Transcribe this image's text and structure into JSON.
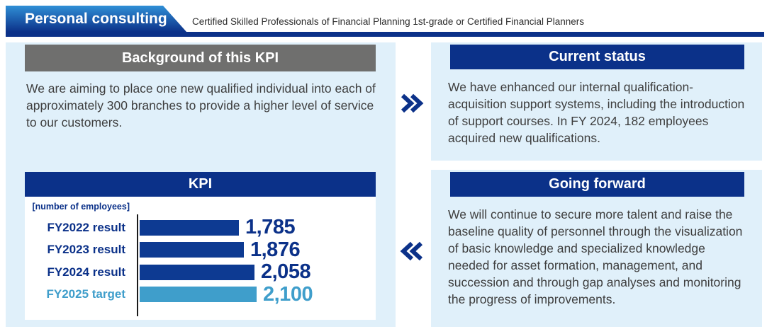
{
  "header": {
    "title": "Personal consulting",
    "subtitle": "Certified Skilled Professionals of Financial Planning 1st-grade or Certified Financial Planners"
  },
  "background": {
    "heading": "Background of this KPI",
    "body": "We are aiming to place one new qualified individual into each of approximately 300 branches to provide a higher level of service to our customers."
  },
  "current_status": {
    "heading": "Current status",
    "body": "We have enhanced our internal qualification-acquisition support systems, including the introduction of support courses. In FY 2024, 182 employees acquired new qualifications."
  },
  "going_forward": {
    "heading": "Going forward",
    "body": "We will continue to secure more talent and raise the baseline quality of personnel through the visualization of basic knowledge and specialized knowledge needed for asset formation, management, and succession and through gap analyses and monitoring the progress of improvements."
  },
  "kpi": {
    "heading": "KPI",
    "unit_label": "[number of employees]"
  },
  "icons": {
    "forward_arrow": "double-chevron-right",
    "back_arrow": "double-chevron-left"
  },
  "colors": {
    "navy": "#0b3189",
    "bar_navy": "#0d3a92",
    "target_blue": "#3f9ecb",
    "panel_bg": "#e0f0fa",
    "gray_header": "#6f6f6e",
    "banner_gradient_top": "#2f8fd6",
    "banner_gradient_bottom": "#0c3189"
  },
  "chart_data": {
    "type": "bar",
    "orientation": "horizontal",
    "title": "KPI",
    "unit": "[number of employees]",
    "categories": [
      "FY2022 result",
      "FY2023 result",
      "FY2024 result",
      "FY2025 target"
    ],
    "values": [
      1785,
      1876,
      2058,
      2100
    ],
    "value_labels": [
      "1,785",
      "1,876",
      "2,058",
      "2,100"
    ],
    "bar_colors": [
      "#0d3a92",
      "#0d3a92",
      "#0d3a92",
      "#3f9ecb"
    ],
    "label_colors": [
      "#0b3189",
      "#0b3189",
      "#0b3189",
      "#3f9ecb"
    ],
    "xlim": [
      0,
      2100
    ],
    "grid": false,
    "legend": false,
    "axis_line": true
  }
}
